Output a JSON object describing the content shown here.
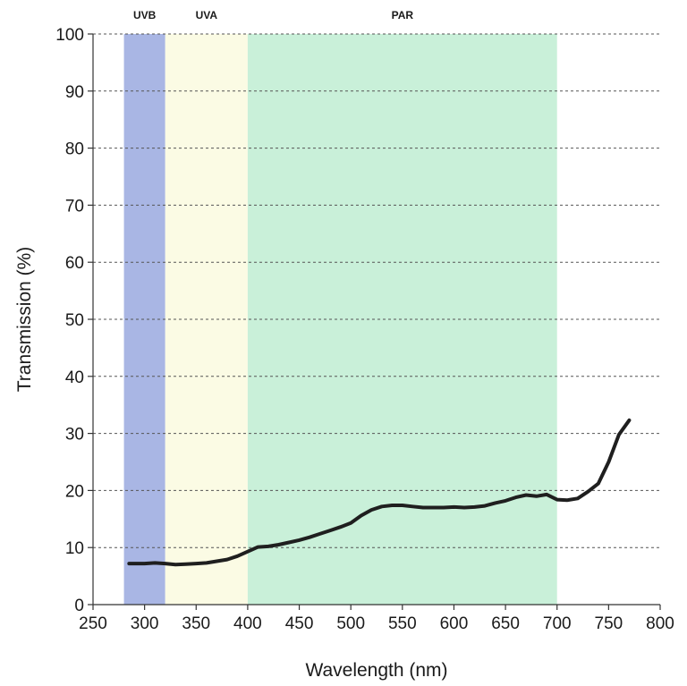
{
  "chart_data": {
    "type": "line",
    "xlabel": "Wavelength (nm)",
    "ylabel": "Transmission (%)",
    "xlim": [
      250,
      800
    ],
    "ylim": [
      0,
      100
    ],
    "x_ticks": [
      250,
      300,
      350,
      400,
      450,
      500,
      550,
      600,
      650,
      700,
      750,
      800
    ],
    "y_ticks": [
      0,
      10,
      20,
      30,
      40,
      50,
      60,
      70,
      80,
      90,
      100
    ],
    "grid": "horizontal dashed",
    "bands": [
      {
        "label": "UVB",
        "from": 280,
        "to": 320,
        "color": "#a9b6e4"
      },
      {
        "label": "UVA",
        "from": 320,
        "to": 400,
        "color": "#fbfbe4"
      },
      {
        "label": "PAR",
        "from": 400,
        "to": 700,
        "color": "#c9f0d9"
      }
    ],
    "series": [
      {
        "color": "#1f1f1f",
        "x": [
          285,
          300,
          310,
          320,
          330,
          340,
          350,
          360,
          370,
          380,
          390,
          400,
          410,
          420,
          430,
          440,
          450,
          460,
          470,
          480,
          490,
          500,
          510,
          520,
          530,
          540,
          550,
          560,
          570,
          580,
          590,
          600,
          610,
          620,
          630,
          640,
          650,
          660,
          670,
          680,
          690,
          700,
          710,
          720,
          730,
          740,
          750,
          760,
          770
        ],
        "y": [
          7.2,
          7.2,
          7.3,
          7.2,
          7.0,
          7.1,
          7.2,
          7.3,
          7.6,
          7.9,
          8.5,
          9.3,
          10.1,
          10.2,
          10.5,
          10.9,
          11.3,
          11.8,
          12.4,
          13.0,
          13.6,
          14.3,
          15.6,
          16.6,
          17.2,
          17.4,
          17.4,
          17.2,
          17.0,
          17.0,
          17.0,
          17.1,
          17.0,
          17.1,
          17.3,
          17.8,
          18.2,
          18.8,
          19.2,
          19.0,
          19.3,
          18.4,
          18.3,
          18.6,
          19.8,
          21.2,
          25.0,
          29.8,
          32.3
        ]
      }
    ]
  }
}
